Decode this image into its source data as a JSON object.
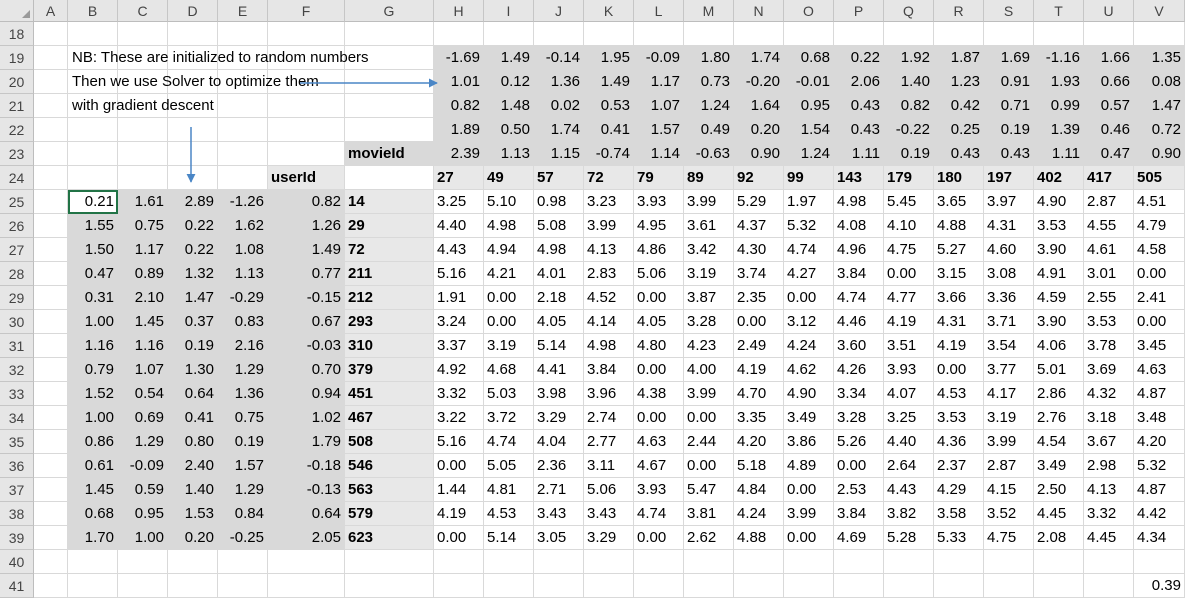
{
  "columns": [
    "A",
    "B",
    "C",
    "D",
    "E",
    "F",
    "G",
    "H",
    "I",
    "J",
    "K",
    "L",
    "M",
    "N",
    "O",
    "P",
    "Q",
    "R",
    "S",
    "T",
    "U",
    "V"
  ],
  "rows": [
    18,
    19,
    20,
    21,
    22,
    23,
    24,
    25,
    26,
    27,
    28,
    29,
    30,
    31,
    32,
    33,
    34,
    35,
    36,
    37,
    38,
    39,
    40,
    41
  ],
  "notes": [
    "NB: These are initialized to random numbers",
    "Then we use Solver to optimize them",
    "with gradient descent"
  ],
  "labels": {
    "movie": "movieId",
    "user": "userId"
  },
  "movie_factors": [
    [
      "-1.69",
      "1.49",
      "-0.14",
      "1.95",
      "-0.09",
      "1.80",
      "1.74",
      "0.68",
      "0.22",
      "1.92",
      "1.87",
      "1.69",
      "-1.16",
      "1.66",
      "1.35"
    ],
    [
      "1.01",
      "0.12",
      "1.36",
      "1.49",
      "1.17",
      "0.73",
      "-0.20",
      "-0.01",
      "2.06",
      "1.40",
      "1.23",
      "0.91",
      "1.93",
      "0.66",
      "0.08"
    ],
    [
      "0.82",
      "1.48",
      "0.02",
      "0.53",
      "1.07",
      "1.24",
      "1.64",
      "0.95",
      "0.43",
      "0.82",
      "0.42",
      "0.71",
      "0.99",
      "0.57",
      "1.47"
    ],
    [
      "1.89",
      "0.50",
      "1.74",
      "0.41",
      "1.57",
      "0.49",
      "0.20",
      "1.54",
      "0.43",
      "-0.22",
      "0.25",
      "0.19",
      "1.39",
      "0.46",
      "0.72"
    ],
    [
      "2.39",
      "1.13",
      "1.15",
      "-0.74",
      "1.14",
      "-0.63",
      "0.90",
      "1.24",
      "1.11",
      "0.19",
      "0.43",
      "0.43",
      "1.11",
      "0.47",
      "0.90"
    ]
  ],
  "movie_ids": [
    "27",
    "49",
    "57",
    "72",
    "79",
    "89",
    "92",
    "99",
    "143",
    "179",
    "180",
    "197",
    "402",
    "417",
    "505"
  ],
  "user_factors": [
    [
      "0.21",
      "1.61",
      "2.89",
      "-1.26",
      "0.82"
    ],
    [
      "1.55",
      "0.75",
      "0.22",
      "1.62",
      "1.26"
    ],
    [
      "1.50",
      "1.17",
      "0.22",
      "1.08",
      "1.49"
    ],
    [
      "0.47",
      "0.89",
      "1.32",
      "1.13",
      "0.77"
    ],
    [
      "0.31",
      "2.10",
      "1.47",
      "-0.29",
      "-0.15"
    ],
    [
      "1.00",
      "1.45",
      "0.37",
      "0.83",
      "0.67"
    ],
    [
      "1.16",
      "1.16",
      "0.19",
      "2.16",
      "-0.03"
    ],
    [
      "0.79",
      "1.07",
      "1.30",
      "1.29",
      "0.70"
    ],
    [
      "1.52",
      "0.54",
      "0.64",
      "1.36",
      "0.94"
    ],
    [
      "1.00",
      "0.69",
      "0.41",
      "0.75",
      "1.02"
    ],
    [
      "0.86",
      "1.29",
      "0.80",
      "0.19",
      "1.79"
    ],
    [
      "0.61",
      "-0.09",
      "2.40",
      "1.57",
      "-0.18"
    ],
    [
      "1.45",
      "0.59",
      "1.40",
      "1.29",
      "-0.13"
    ],
    [
      "0.68",
      "0.95",
      "1.53",
      "0.84",
      "0.64"
    ],
    [
      "1.70",
      "1.00",
      "0.20",
      "-0.25",
      "2.05"
    ]
  ],
  "user_ids": [
    "14",
    "29",
    "72",
    "211",
    "212",
    "293",
    "310",
    "379",
    "451",
    "467",
    "508",
    "546",
    "563",
    "579",
    "623"
  ],
  "predictions": [
    [
      "3.25",
      "5.10",
      "0.98",
      "3.23",
      "3.93",
      "3.99",
      "5.29",
      "1.97",
      "4.98",
      "5.45",
      "3.65",
      "3.97",
      "4.90",
      "2.87",
      "4.51"
    ],
    [
      "4.40",
      "4.98",
      "5.08",
      "3.99",
      "4.95",
      "3.61",
      "4.37",
      "5.32",
      "4.08",
      "4.10",
      "4.88",
      "4.31",
      "3.53",
      "4.55",
      "4.79"
    ],
    [
      "4.43",
      "4.94",
      "4.98",
      "4.13",
      "4.86",
      "3.42",
      "4.30",
      "4.74",
      "4.96",
      "4.75",
      "5.27",
      "4.60",
      "3.90",
      "4.61",
      "4.58"
    ],
    [
      "5.16",
      "4.21",
      "4.01",
      "2.83",
      "5.06",
      "3.19",
      "3.74",
      "4.27",
      "3.84",
      "0.00",
      "3.15",
      "3.08",
      "4.91",
      "3.01",
      "0.00"
    ],
    [
      "1.91",
      "0.00",
      "2.18",
      "4.52",
      "0.00",
      "3.87",
      "2.35",
      "0.00",
      "4.74",
      "4.77",
      "3.66",
      "3.36",
      "4.59",
      "2.55",
      "2.41"
    ],
    [
      "3.24",
      "0.00",
      "4.05",
      "4.14",
      "4.05",
      "3.28",
      "0.00",
      "3.12",
      "4.46",
      "4.19",
      "4.31",
      "3.71",
      "3.90",
      "3.53",
      "0.00"
    ],
    [
      "3.37",
      "3.19",
      "5.14",
      "4.98",
      "4.80",
      "4.23",
      "2.49",
      "4.24",
      "3.60",
      "3.51",
      "4.19",
      "3.54",
      "4.06",
      "3.78",
      "3.45"
    ],
    [
      "4.92",
      "4.68",
      "4.41",
      "3.84",
      "0.00",
      "4.00",
      "4.19",
      "4.62",
      "4.26",
      "3.93",
      "0.00",
      "3.77",
      "5.01",
      "3.69",
      "4.63"
    ],
    [
      "3.32",
      "5.03",
      "3.98",
      "3.96",
      "4.38",
      "3.99",
      "4.70",
      "4.90",
      "3.34",
      "4.07",
      "4.53",
      "4.17",
      "2.86",
      "4.32",
      "4.87"
    ],
    [
      "3.22",
      "3.72",
      "3.29",
      "2.74",
      "0.00",
      "0.00",
      "3.35",
      "3.49",
      "3.28",
      "3.25",
      "3.53",
      "3.19",
      "2.76",
      "3.18",
      "3.48"
    ],
    [
      "5.16",
      "4.74",
      "4.04",
      "2.77",
      "4.63",
      "2.44",
      "4.20",
      "3.86",
      "5.26",
      "4.40",
      "4.36",
      "3.99",
      "4.54",
      "3.67",
      "4.20"
    ],
    [
      "0.00",
      "5.05",
      "2.36",
      "3.11",
      "4.67",
      "0.00",
      "5.18",
      "4.89",
      "0.00",
      "2.64",
      "2.37",
      "2.87",
      "3.49",
      "2.98",
      "5.32"
    ],
    [
      "1.44",
      "4.81",
      "2.71",
      "5.06",
      "3.93",
      "5.47",
      "4.84",
      "0.00",
      "2.53",
      "4.43",
      "4.29",
      "4.15",
      "2.50",
      "4.13",
      "4.87"
    ],
    [
      "4.19",
      "4.53",
      "3.43",
      "3.43",
      "4.74",
      "3.81",
      "4.24",
      "3.99",
      "3.84",
      "3.82",
      "3.58",
      "3.52",
      "4.45",
      "3.32",
      "4.42"
    ],
    [
      "0.00",
      "5.14",
      "3.05",
      "3.29",
      "0.00",
      "2.62",
      "4.88",
      "0.00",
      "4.69",
      "5.28",
      "5.33",
      "4.75",
      "2.08",
      "4.45",
      "4.34"
    ]
  ],
  "loss": "0.39"
}
